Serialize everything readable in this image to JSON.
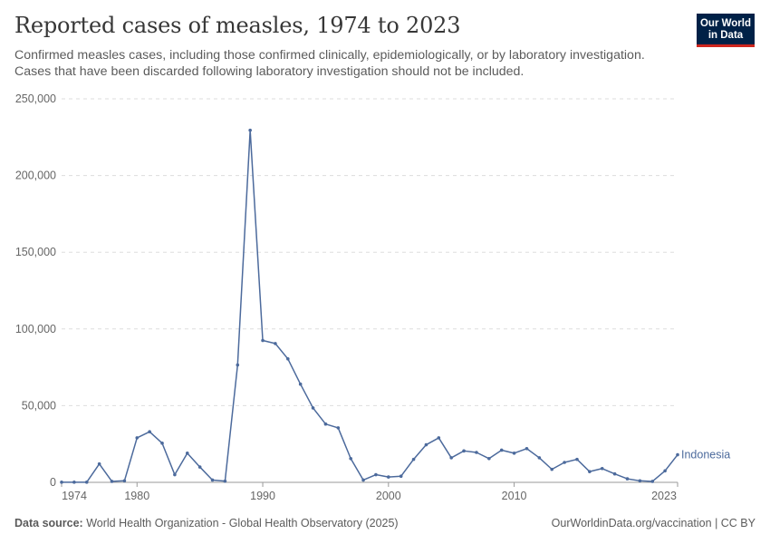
{
  "header": {
    "title": "Reported cases of measles, 1974 to 2023",
    "subtitle_line1": "Confirmed measles cases, including those confirmed clinically, epidemiologically, or by laboratory investigation.",
    "subtitle_line2": "Cases that have been discarded following laboratory investigation should not be included."
  },
  "logo": {
    "line1": "Our World",
    "line2": "in Data",
    "bg_color": "#002147",
    "accent_color": "#ce261e"
  },
  "footer": {
    "source_label": "Data source:",
    "source_text": "World Health Organization - Global Health Observatory (2025)",
    "link_text": "OurWorldinData.org/vaccination | CC BY"
  },
  "chart_data": {
    "type": "line",
    "title": "Reported cases of measles, 1974 to 2023",
    "xlabel": "",
    "ylabel": "",
    "xlim": [
      1974,
      2023
    ],
    "ylim": [
      0,
      250000
    ],
    "y_ticks": [
      0,
      50000,
      100000,
      150000,
      200000,
      250000
    ],
    "y_tick_labels": [
      "0",
      "50,000",
      "100,000",
      "150,000",
      "200,000",
      "250,000"
    ],
    "x_ticks": [
      1974,
      1980,
      1990,
      2000,
      2010,
      2023
    ],
    "x_tick_labels": [
      "1974",
      "1980",
      "1990",
      "2000",
      "2010",
      "2023"
    ],
    "grid": true,
    "color": "#4c6a9c",
    "series": [
      {
        "name": "Indonesia",
        "x": [
          1974,
          1975,
          1976,
          1977,
          1978,
          1979,
          1980,
          1981,
          1982,
          1983,
          1984,
          1985,
          1986,
          1987,
          1988,
          1989,
          1990,
          1991,
          1992,
          1993,
          1994,
          1995,
          1996,
          1997,
          1998,
          1999,
          2000,
          2001,
          2002,
          2003,
          2004,
          2005,
          2006,
          2007,
          2008,
          2009,
          2010,
          2011,
          2012,
          2013,
          2014,
          2015,
          2016,
          2017,
          2018,
          2019,
          2020,
          2021,
          2022,
          2023
        ],
        "values": [
          100,
          100,
          100,
          12000,
          600,
          1000,
          29000,
          33000,
          25500,
          5000,
          19000,
          10000,
          1500,
          800,
          76500,
          229500,
          92500,
          90500,
          80500,
          64000,
          48500,
          38000,
          35500,
          15500,
          1500,
          5000,
          3500,
          4000,
          15000,
          24500,
          29000,
          16000,
          20500,
          19500,
          15500,
          21000,
          19000,
          22000,
          16000,
          8500,
          13000,
          15000,
          7000,
          9000,
          5500,
          2300,
          1000,
          600,
          7500,
          18000
        ]
      }
    ]
  }
}
